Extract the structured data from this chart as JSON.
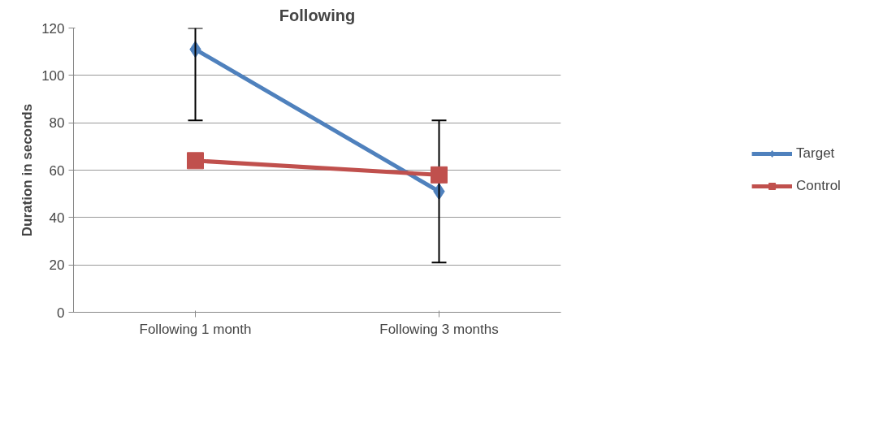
{
  "chart_data": {
    "type": "line",
    "title": "Following",
    "ylabel": "Duration in seconds",
    "categories": [
      "Following 1 month",
      "Following 3 months"
    ],
    "series": [
      {
        "name": "Target",
        "color": "#4f81bd",
        "marker": "diamond",
        "values": [
          111,
          51
        ],
        "errors": [
          [
            81,
            120
          ],
          [
            21,
            81
          ]
        ]
      },
      {
        "name": "Control",
        "color": "#c0504d",
        "marker": "square",
        "values": [
          64,
          58
        ]
      }
    ],
    "ylim": [
      0,
      120
    ],
    "yticks": [
      0,
      20,
      40,
      60,
      80,
      100,
      120
    ],
    "grid": "y",
    "legend": "right"
  }
}
